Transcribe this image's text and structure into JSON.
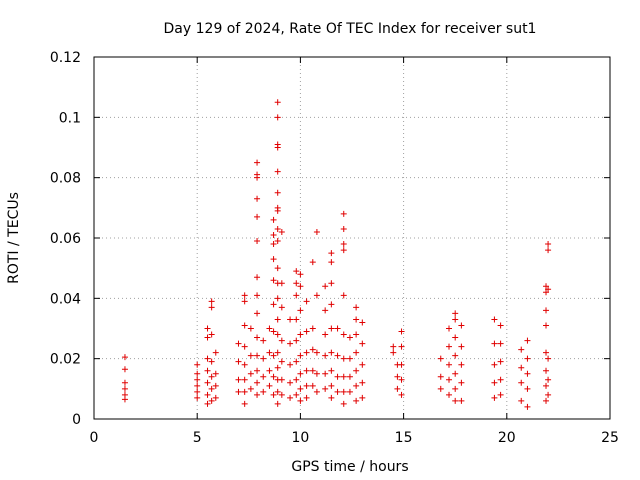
{
  "chart_data": {
    "type": "scatter",
    "title": "Day 129 of 2024, Rate Of TEC Index for receiver sut1",
    "xlabel": "GPS time / hours",
    "ylabel": "ROTI / TECUs",
    "xlim": [
      0,
      25
    ],
    "ylim": [
      0,
      0.12
    ],
    "xticks": [
      0,
      5,
      10,
      15,
      20,
      25
    ],
    "xtick_labels": [
      "0",
      "5",
      "10",
      "15",
      "20",
      "25"
    ],
    "yticks": [
      0,
      0.02,
      0.04,
      0.06,
      0.08,
      0.1,
      0.12
    ],
    "ytick_labels": [
      "0",
      "0.02",
      "0.04",
      "0.06",
      "0.08",
      "0.1",
      "0.12"
    ],
    "grid": true,
    "marker": "+",
    "color": "#e00000",
    "series": [
      {
        "name": "sut1",
        "points": [
          [
            1.5,
            0.0205
          ],
          [
            1.5,
            0.0165
          ],
          [
            1.5,
            0.012
          ],
          [
            1.5,
            0.01
          ],
          [
            1.5,
            0.008
          ],
          [
            1.5,
            0.0065
          ],
          [
            5.0,
            0.018
          ],
          [
            5.0,
            0.015
          ],
          [
            5.0,
            0.013
          ],
          [
            5.0,
            0.011
          ],
          [
            5.0,
            0.009
          ],
          [
            5.0,
            0.007
          ],
          [
            5.5,
            0.03
          ],
          [
            5.5,
            0.027
          ],
          [
            5.5,
            0.02
          ],
          [
            5.5,
            0.016
          ],
          [
            5.5,
            0.012
          ],
          [
            5.5,
            0.008
          ],
          [
            5.5,
            0.005
          ],
          [
            5.7,
            0.039
          ],
          [
            5.7,
            0.037
          ],
          [
            5.7,
            0.028
          ],
          [
            5.7,
            0.019
          ],
          [
            5.7,
            0.014
          ],
          [
            5.7,
            0.01
          ],
          [
            5.7,
            0.006
          ],
          [
            5.9,
            0.022
          ],
          [
            5.9,
            0.015
          ],
          [
            5.9,
            0.011
          ],
          [
            5.9,
            0.007
          ],
          [
            7.0,
            0.025
          ],
          [
            7.0,
            0.019
          ],
          [
            7.0,
            0.013
          ],
          [
            7.0,
            0.009
          ],
          [
            7.3,
            0.041
          ],
          [
            7.3,
            0.039
          ],
          [
            7.3,
            0.031
          ],
          [
            7.3,
            0.024
          ],
          [
            7.3,
            0.018
          ],
          [
            7.3,
            0.013
          ],
          [
            7.3,
            0.009
          ],
          [
            7.3,
            0.005
          ],
          [
            7.6,
            0.03
          ],
          [
            7.6,
            0.021
          ],
          [
            7.6,
            0.015
          ],
          [
            7.6,
            0.01
          ],
          [
            7.9,
            0.085
          ],
          [
            7.9,
            0.081
          ],
          [
            7.9,
            0.08
          ],
          [
            7.9,
            0.073
          ],
          [
            7.9,
            0.067
          ],
          [
            7.9,
            0.059
          ],
          [
            7.9,
            0.047
          ],
          [
            7.9,
            0.041
          ],
          [
            7.9,
            0.035
          ],
          [
            7.9,
            0.027
          ],
          [
            7.9,
            0.021
          ],
          [
            7.9,
            0.016
          ],
          [
            7.9,
            0.012
          ],
          [
            7.9,
            0.008
          ],
          [
            8.2,
            0.026
          ],
          [
            8.2,
            0.02
          ],
          [
            8.2,
            0.014
          ],
          [
            8.2,
            0.009
          ],
          [
            8.5,
            0.03
          ],
          [
            8.5,
            0.022
          ],
          [
            8.5,
            0.016
          ],
          [
            8.5,
            0.011
          ],
          [
            8.7,
            0.066
          ],
          [
            8.7,
            0.061
          ],
          [
            8.7,
            0.058
          ],
          [
            8.7,
            0.053
          ],
          [
            8.7,
            0.046
          ],
          [
            8.7,
            0.038
          ],
          [
            8.7,
            0.029
          ],
          [
            8.7,
            0.021
          ],
          [
            8.7,
            0.014
          ],
          [
            8.7,
            0.008
          ],
          [
            8.9,
            0.105
          ],
          [
            8.9,
            0.1
          ],
          [
            8.9,
            0.091
          ],
          [
            8.9,
            0.09
          ],
          [
            8.9,
            0.082
          ],
          [
            8.9,
            0.075
          ],
          [
            8.9,
            0.07
          ],
          [
            8.9,
            0.069
          ],
          [
            8.9,
            0.063
          ],
          [
            8.9,
            0.059
          ],
          [
            8.9,
            0.05
          ],
          [
            8.9,
            0.045
          ],
          [
            8.9,
            0.04
          ],
          [
            8.9,
            0.033
          ],
          [
            8.9,
            0.028
          ],
          [
            8.9,
            0.022
          ],
          [
            8.9,
            0.017
          ],
          [
            8.9,
            0.013
          ],
          [
            8.9,
            0.009
          ],
          [
            8.9,
            0.005
          ],
          [
            9.1,
            0.062
          ],
          [
            9.1,
            0.045
          ],
          [
            9.1,
            0.037
          ],
          [
            9.1,
            0.026
          ],
          [
            9.1,
            0.019
          ],
          [
            9.1,
            0.013
          ],
          [
            9.1,
            0.008
          ],
          [
            9.5,
            0.033
          ],
          [
            9.5,
            0.025
          ],
          [
            9.5,
            0.018
          ],
          [
            9.5,
            0.012
          ],
          [
            9.5,
            0.007
          ],
          [
            9.8,
            0.049
          ],
          [
            9.8,
            0.045
          ],
          [
            9.8,
            0.041
          ],
          [
            9.8,
            0.033
          ],
          [
            9.8,
            0.026
          ],
          [
            9.8,
            0.019
          ],
          [
            9.8,
            0.013
          ],
          [
            9.8,
            0.008
          ],
          [
            10.0,
            0.048
          ],
          [
            10.0,
            0.044
          ],
          [
            10.0,
            0.036
          ],
          [
            10.0,
            0.028
          ],
          [
            10.0,
            0.021
          ],
          [
            10.0,
            0.015
          ],
          [
            10.0,
            0.01
          ],
          [
            10.0,
            0.006
          ],
          [
            10.3,
            0.039
          ],
          [
            10.3,
            0.029
          ],
          [
            10.3,
            0.022
          ],
          [
            10.3,
            0.016
          ],
          [
            10.3,
            0.011
          ],
          [
            10.3,
            0.007
          ],
          [
            10.6,
            0.052
          ],
          [
            10.6,
            0.03
          ],
          [
            10.6,
            0.023
          ],
          [
            10.6,
            0.016
          ],
          [
            10.6,
            0.011
          ],
          [
            10.8,
            0.062
          ],
          [
            10.8,
            0.041
          ],
          [
            10.8,
            0.022
          ],
          [
            10.8,
            0.015
          ],
          [
            10.8,
            0.009
          ],
          [
            11.2,
            0.044
          ],
          [
            11.2,
            0.036
          ],
          [
            11.2,
            0.028
          ],
          [
            11.2,
            0.021
          ],
          [
            11.2,
            0.015
          ],
          [
            11.2,
            0.01
          ],
          [
            11.5,
            0.055
          ],
          [
            11.5,
            0.052
          ],
          [
            11.5,
            0.045
          ],
          [
            11.5,
            0.038
          ],
          [
            11.5,
            0.03
          ],
          [
            11.5,
            0.022
          ],
          [
            11.5,
            0.016
          ],
          [
            11.5,
            0.011
          ],
          [
            11.5,
            0.007
          ],
          [
            11.8,
            0.03
          ],
          [
            11.8,
            0.021
          ],
          [
            11.8,
            0.014
          ],
          [
            11.8,
            0.009
          ],
          [
            12.1,
            0.068
          ],
          [
            12.1,
            0.063
          ],
          [
            12.1,
            0.058
          ],
          [
            12.1,
            0.056
          ],
          [
            12.1,
            0.041
          ],
          [
            12.1,
            0.028
          ],
          [
            12.1,
            0.02
          ],
          [
            12.1,
            0.014
          ],
          [
            12.1,
            0.009
          ],
          [
            12.1,
            0.005
          ],
          [
            12.4,
            0.027
          ],
          [
            12.4,
            0.02
          ],
          [
            12.4,
            0.014
          ],
          [
            12.4,
            0.009
          ],
          [
            12.7,
            0.037
          ],
          [
            12.7,
            0.033
          ],
          [
            12.7,
            0.028
          ],
          [
            12.7,
            0.022
          ],
          [
            12.7,
            0.016
          ],
          [
            12.7,
            0.011
          ],
          [
            12.7,
            0.006
          ],
          [
            13.0,
            0.032
          ],
          [
            13.0,
            0.025
          ],
          [
            13.0,
            0.018
          ],
          [
            13.0,
            0.012
          ],
          [
            13.0,
            0.007
          ],
          [
            14.5,
            0.024
          ],
          [
            14.5,
            0.022
          ],
          [
            14.7,
            0.018
          ],
          [
            14.7,
            0.014
          ],
          [
            14.7,
            0.01
          ],
          [
            14.9,
            0.029
          ],
          [
            14.9,
            0.024
          ],
          [
            14.9,
            0.018
          ],
          [
            14.9,
            0.013
          ],
          [
            14.9,
            0.008
          ],
          [
            16.8,
            0.02
          ],
          [
            16.8,
            0.014
          ],
          [
            16.8,
            0.01
          ],
          [
            17.2,
            0.03
          ],
          [
            17.2,
            0.024
          ],
          [
            17.2,
            0.018
          ],
          [
            17.2,
            0.013
          ],
          [
            17.2,
            0.008
          ],
          [
            17.5,
            0.035
          ],
          [
            17.5,
            0.033
          ],
          [
            17.5,
            0.027
          ],
          [
            17.5,
            0.021
          ],
          [
            17.5,
            0.015
          ],
          [
            17.5,
            0.01
          ],
          [
            17.5,
            0.006
          ],
          [
            17.8,
            0.031
          ],
          [
            17.8,
            0.024
          ],
          [
            17.8,
            0.018
          ],
          [
            17.8,
            0.012
          ],
          [
            17.8,
            0.006
          ],
          [
            19.4,
            0.033
          ],
          [
            19.4,
            0.025
          ],
          [
            19.4,
            0.018
          ],
          [
            19.4,
            0.012
          ],
          [
            19.4,
            0.007
          ],
          [
            19.7,
            0.031
          ],
          [
            19.7,
            0.025
          ],
          [
            19.7,
            0.019
          ],
          [
            19.7,
            0.013
          ],
          [
            19.7,
            0.008
          ],
          [
            20.7,
            0.023
          ],
          [
            20.7,
            0.017
          ],
          [
            20.7,
            0.012
          ],
          [
            20.7,
            0.006
          ],
          [
            21.0,
            0.026
          ],
          [
            21.0,
            0.02
          ],
          [
            21.0,
            0.015
          ],
          [
            21.0,
            0.01
          ],
          [
            21.0,
            0.004
          ],
          [
            21.9,
            0.044
          ],
          [
            21.9,
            0.042
          ],
          [
            21.9,
            0.036
          ],
          [
            21.9,
            0.031
          ],
          [
            21.9,
            0.022
          ],
          [
            21.9,
            0.016
          ],
          [
            21.9,
            0.011
          ],
          [
            21.9,
            0.006
          ],
          [
            22.0,
            0.058
          ],
          [
            22.0,
            0.056
          ],
          [
            22.0,
            0.043
          ],
          [
            22.0,
            0.02
          ],
          [
            22.0,
            0.013
          ],
          [
            22.0,
            0.008
          ]
        ]
      }
    ]
  }
}
